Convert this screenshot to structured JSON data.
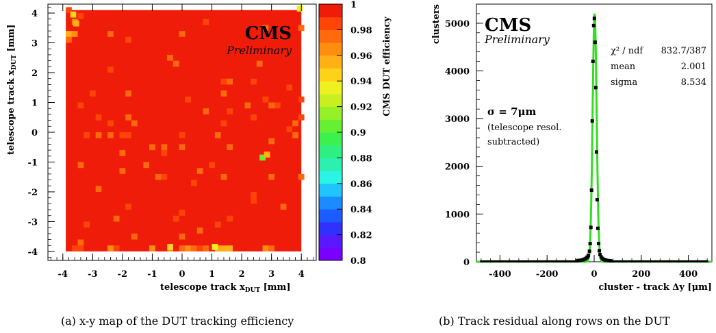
{
  "charts": {
    "heatmap": {
      "cms_label": "CMS",
      "preliminary_label": "Preliminary",
      "xlabel_main": "telescope track x",
      "xlabel_sub": "DUT",
      "xlabel_unit": " [mm]",
      "ylabel_main": "telescope track x",
      "ylabel_sub": "DUT",
      "ylabel_unit": " [mm]",
      "colorbar_label": "CMS DUT efficiency",
      "caption": "(a) x-y map of the DUT tracking efficiency"
    },
    "residual": {
      "cms_label": "CMS",
      "preliminary_label": "Preliminary",
      "ylabel": "clusters",
      "xlabel_main": "cluster - track Δy [μm]",
      "stats": {
        "chi2_label": "χ² / ndf",
        "chi2_value": "832.7/387",
        "mean_label": "mean",
        "mean_value": "2.001",
        "sigma_label": "sigma",
        "sigma_value": "8.534"
      },
      "sigma_text": "σ = 7μm",
      "note_line1": "(telescope resol.",
      "note_line2": "subtracted)",
      "caption": "(b) Track residual along rows on the DUT"
    }
  },
  "chart_data": [
    {
      "type": "heatmap",
      "title": "",
      "xlabel": "telescope track x_DUT [mm]",
      "ylabel": "telescope track x_DUT [mm]",
      "xlim": [
        -4.5,
        4.5
      ],
      "ylim": [
        -4.3,
        4.3
      ],
      "x_ticks": [
        -4,
        -3,
        -2,
        -1,
        0,
        1,
        2,
        3,
        4
      ],
      "y_ticks": [
        -4,
        -3,
        -2,
        -1,
        0,
        1,
        2,
        3,
        4
      ],
      "z_range": [
        0.8,
        1.0
      ],
      "colorbar_ticks": [
        0.8,
        0.82,
        0.84,
        0.86,
        0.88,
        0.9,
        0.92,
        0.94,
        0.96,
        0.98,
        1
      ],
      "colorbar_ticklabels": [
        "0.8",
        "0.82",
        "0.84",
        "0.86",
        "0.88",
        "0.9",
        "0.92",
        "0.94",
        "0.96",
        "0.98",
        "1"
      ],
      "colorbar_colors": [
        "#7a00ff",
        "#5a18ff",
        "#3030ff",
        "#1a5cff",
        "#1a8cff",
        "#20c4ff",
        "#2af5e4",
        "#2cf0b0",
        "#2ef080",
        "#3cf04e",
        "#66f032",
        "#96f028",
        "#c8f020",
        "#f0f020",
        "#ffd21a",
        "#ffb014",
        "#ff8e10",
        "#ff6a0c",
        "#ff4408",
        "#f01c0a"
      ],
      "map_x_range": [
        -3.9,
        4.0
      ],
      "map_y_range": [
        -4.0,
        4.1
      ],
      "typical_efficiency": 0.995,
      "notable_cells": [
        {
          "x": 2.6,
          "y": -0.95,
          "z": 0.9
        },
        {
          "x": -3.75,
          "y": 3.85,
          "z": 0.95
        },
        {
          "x": -3.65,
          "y": 3.55,
          "z": 0.96
        },
        {
          "x": 3.85,
          "y": 4.05,
          "z": 0.93
        },
        {
          "x": 2.75,
          "y": -0.85,
          "z": 0.96
        },
        {
          "x": 1.0,
          "y": -3.95,
          "z": 0.94
        },
        {
          "x": -0.5,
          "y": -3.95,
          "z": 0.95
        }
      ]
    },
    {
      "type": "scatter",
      "title": "",
      "xlabel": "cluster - track Δy [μm]",
      "ylabel": "clusters",
      "xlim": [
        -500,
        500
      ],
      "ylim": [
        0,
        5400
      ],
      "x_ticks": [
        -400,
        -200,
        0,
        200,
        400
      ],
      "y_ticks": [
        0,
        1000,
        2000,
        3000,
        4000,
        5000
      ],
      "series": [
        {
          "marker": "square",
          "color": "#000000",
          "x": [
            -70,
            -60,
            -50,
            -45,
            -40,
            -35,
            -30,
            -25,
            -20,
            -17,
            -14,
            -11,
            -8,
            -5,
            -2,
            1,
            4,
            7,
            10,
            13,
            16,
            19,
            22,
            25,
            30,
            35,
            40,
            45,
            50,
            60,
            70
          ],
          "y": [
            25,
            30,
            38,
            45,
            55,
            70,
            95,
            130,
            220,
            380,
            720,
            1500,
            2950,
            4200,
            4950,
            5100,
            4600,
            3650,
            2300,
            1300,
            700,
            380,
            230,
            150,
            100,
            70,
            50,
            40,
            32,
            25,
            20
          ]
        },
        {
          "type": "line",
          "color": "#33dd22",
          "fit": "gaussian",
          "mean": 2.001,
          "sigma": 8.534,
          "amplitude": 5200
        }
      ]
    }
  ]
}
